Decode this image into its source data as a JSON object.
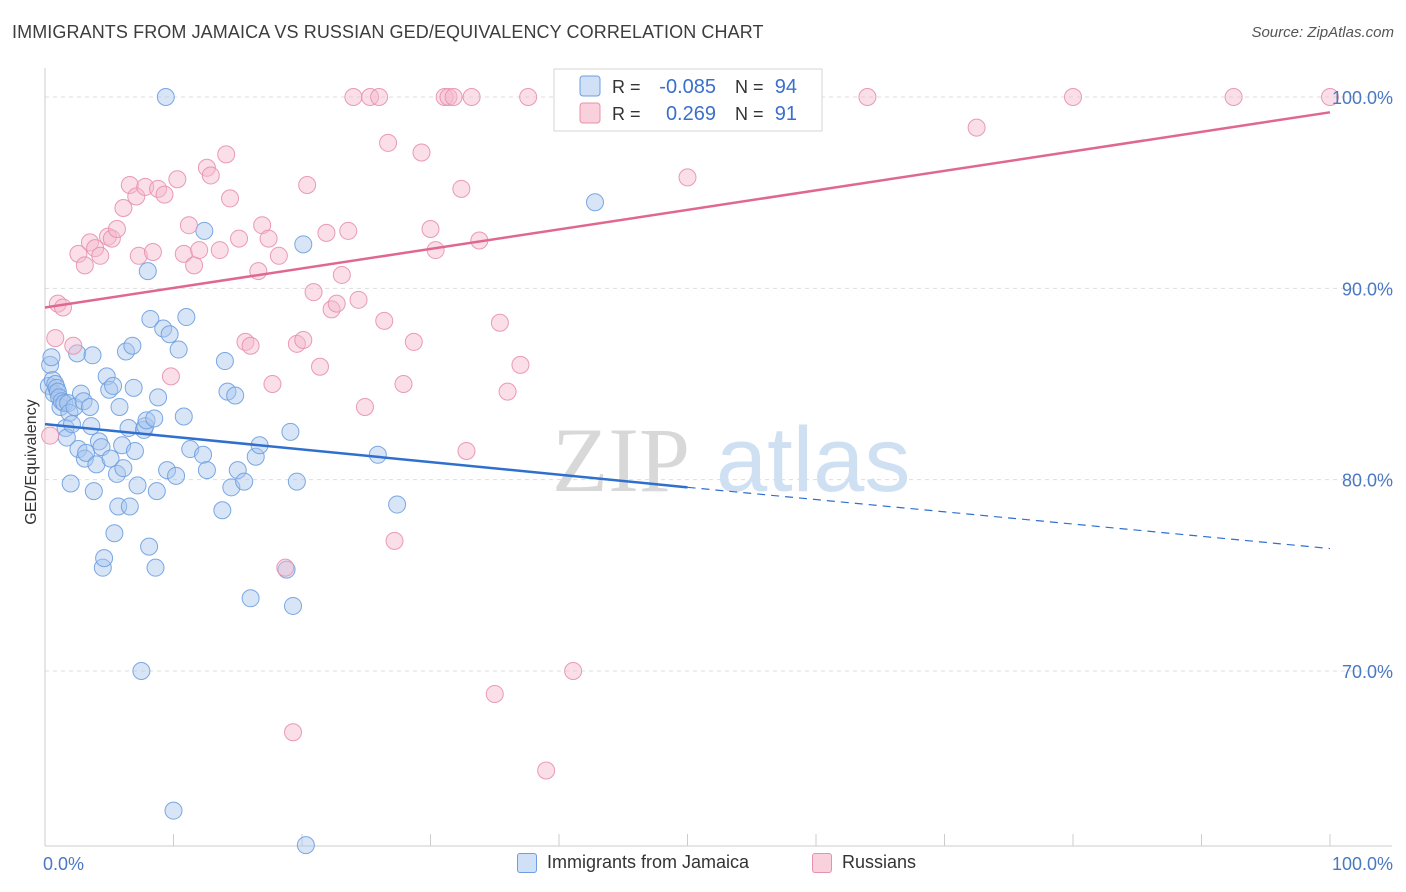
{
  "title": "IMMIGRANTS FROM JAMAICA VS RUSSIAN GED/EQUIVALENCY CORRELATION CHART",
  "source": "Source: ZipAtlas.com",
  "watermark": {
    "part1": "ZIP",
    "part2": "atlas"
  },
  "colors": {
    "blue_fill": "#a9c6ee",
    "blue_stroke": "#6d9ee0",
    "blue_line": "#2f6fce",
    "pink_fill": "#f5b8cb",
    "pink_stroke": "#e890ad",
    "pink_line": "#e0688f",
    "grid": "#dddddd",
    "tick_text": "#4a78c2"
  },
  "legend": {
    "row1": {
      "r_label": "R = ",
      "r_value": "-0.085",
      "n_label": "N = ",
      "n_value": "94"
    },
    "row2": {
      "r_label": "R = ",
      "r_value": "0.269",
      "n_label": "N = ",
      "n_value": "91"
    }
  },
  "bottom_legend": {
    "series1": "Immigrants from Jamaica",
    "series2": "Russians"
  },
  "chart_data": {
    "type": "scatter",
    "xlabel": "",
    "ylabel": "GED/Equivalency",
    "xlim": [
      0,
      100
    ],
    "ylim": [
      60.5,
      101.5
    ],
    "x_ticks": [
      "0.0%",
      "100.0%"
    ],
    "y_ticks": [
      {
        "value": 100,
        "label": "100.0%"
      },
      {
        "value": 90,
        "label": "90.0%"
      },
      {
        "value": 80,
        "label": "80.0%"
      },
      {
        "value": 70,
        "label": "70.0%"
      }
    ],
    "grid": true,
    "series": [
      {
        "name": "Immigrants from Jamaica",
        "r": -0.085,
        "n": 94,
        "trend": {
          "x0": 0,
          "y0": 82.9,
          "x1": 50,
          "y1": 79.6,
          "dash_x1": 100,
          "dash_y1": 76.4
        },
        "points": [
          [
            0.3,
            84.9
          ],
          [
            0.4,
            86.0
          ],
          [
            0.5,
            86.4
          ],
          [
            0.6,
            85.2
          ],
          [
            0.7,
            84.5
          ],
          [
            0.8,
            85.0
          ],
          [
            0.9,
            84.8
          ],
          [
            1.0,
            84.6
          ],
          [
            1.1,
            84.3
          ],
          [
            1.2,
            83.8
          ],
          [
            1.3,
            84.1
          ],
          [
            1.5,
            84.0
          ],
          [
            1.6,
            82.7
          ],
          [
            1.7,
            82.2
          ],
          [
            1.8,
            84.0
          ],
          [
            1.9,
            83.5
          ],
          [
            2.0,
            79.8
          ],
          [
            2.1,
            82.9
          ],
          [
            2.3,
            83.8
          ],
          [
            2.5,
            86.6
          ],
          [
            2.6,
            81.6
          ],
          [
            2.8,
            84.5
          ],
          [
            3.0,
            84.1
          ],
          [
            3.1,
            81.1
          ],
          [
            3.2,
            81.4
          ],
          [
            3.5,
            83.8
          ],
          [
            3.6,
            82.8
          ],
          [
            3.7,
            86.5
          ],
          [
            3.8,
            79.4
          ],
          [
            4.0,
            80.8
          ],
          [
            4.2,
            82.0
          ],
          [
            4.4,
            81.7
          ],
          [
            4.5,
            75.4
          ],
          [
            4.6,
            75.9
          ],
          [
            4.8,
            85.4
          ],
          [
            5.0,
            84.7
          ],
          [
            5.1,
            81.1
          ],
          [
            5.3,
            84.9
          ],
          [
            5.4,
            77.2
          ],
          [
            5.6,
            80.3
          ],
          [
            5.7,
            78.6
          ],
          [
            5.8,
            83.8
          ],
          [
            6.0,
            81.8
          ],
          [
            6.1,
            80.6
          ],
          [
            6.3,
            86.7
          ],
          [
            6.5,
            82.7
          ],
          [
            6.6,
            78.6
          ],
          [
            6.8,
            87.0
          ],
          [
            6.9,
            84.8
          ],
          [
            7.0,
            81.5
          ],
          [
            7.2,
            79.7
          ],
          [
            7.5,
            70.0
          ],
          [
            7.7,
            82.6
          ],
          [
            7.8,
            82.8
          ],
          [
            7.9,
            83.1
          ],
          [
            8.0,
            90.9
          ],
          [
            8.1,
            76.5
          ],
          [
            8.2,
            88.4
          ],
          [
            8.5,
            83.2
          ],
          [
            8.6,
            75.4
          ],
          [
            8.7,
            79.4
          ],
          [
            8.8,
            84.3
          ],
          [
            9.2,
            87.9
          ],
          [
            9.4,
            100.0
          ],
          [
            9.5,
            80.5
          ],
          [
            9.7,
            87.6
          ],
          [
            10.0,
            62.7
          ],
          [
            10.2,
            80.2
          ],
          [
            10.4,
            86.8
          ],
          [
            10.8,
            83.3
          ],
          [
            11.0,
            88.5
          ],
          [
            11.3,
            81.6
          ],
          [
            12.3,
            81.3
          ],
          [
            12.4,
            93.0
          ],
          [
            12.6,
            80.5
          ],
          [
            13.8,
            78.4
          ],
          [
            14.0,
            86.2
          ],
          [
            14.2,
            84.6
          ],
          [
            14.5,
            79.6
          ],
          [
            14.8,
            84.4
          ],
          [
            15.0,
            80.5
          ],
          [
            15.5,
            79.9
          ],
          [
            16.4,
            81.2
          ],
          [
            16.7,
            81.8
          ],
          [
            16.0,
            73.8
          ],
          [
            18.8,
            75.3
          ],
          [
            19.1,
            82.5
          ],
          [
            19.3,
            73.4
          ],
          [
            19.6,
            79.9
          ],
          [
            20.1,
            92.3
          ],
          [
            20.3,
            60.9
          ],
          [
            25.9,
            81.3
          ],
          [
            27.4,
            78.7
          ],
          [
            42.8,
            94.5
          ]
        ]
      },
      {
        "name": "Russians",
        "r": 0.269,
        "n": 91,
        "trend": {
          "x0": 0,
          "y0": 89.0,
          "x1": 100,
          "y1": 99.2
        },
        "points": [
          [
            0.4,
            82.3
          ],
          [
            0.8,
            87.4
          ],
          [
            1.0,
            89.2
          ],
          [
            1.4,
            89.0
          ],
          [
            2.2,
            87.0
          ],
          [
            2.6,
            91.8
          ],
          [
            3.1,
            91.2
          ],
          [
            3.5,
            92.4
          ],
          [
            3.9,
            92.1
          ],
          [
            4.3,
            91.7
          ],
          [
            4.9,
            92.7
          ],
          [
            5.2,
            92.6
          ],
          [
            5.6,
            93.1
          ],
          [
            6.1,
            94.2
          ],
          [
            6.6,
            95.4
          ],
          [
            7.1,
            94.8
          ],
          [
            7.3,
            91.7
          ],
          [
            7.8,
            95.3
          ],
          [
            8.4,
            91.9
          ],
          [
            8.8,
            95.2
          ],
          [
            9.3,
            94.9
          ],
          [
            9.8,
            85.4
          ],
          [
            10.3,
            95.7
          ],
          [
            10.8,
            91.8
          ],
          [
            11.2,
            93.3
          ],
          [
            11.6,
            91.2
          ],
          [
            12.0,
            92.0
          ],
          [
            12.6,
            96.3
          ],
          [
            12.9,
            95.9
          ],
          [
            13.6,
            92.0
          ],
          [
            14.1,
            97.0
          ],
          [
            14.4,
            94.7
          ],
          [
            15.1,
            92.6
          ],
          [
            15.6,
            87.2
          ],
          [
            16.0,
            87.0
          ],
          [
            16.6,
            90.9
          ],
          [
            16.9,
            93.3
          ],
          [
            17.4,
            92.6
          ],
          [
            17.7,
            85.0
          ],
          [
            18.2,
            91.7
          ],
          [
            18.7,
            75.4
          ],
          [
            19.3,
            66.8
          ],
          [
            19.6,
            87.1
          ],
          [
            20.1,
            87.3
          ],
          [
            20.4,
            95.4
          ],
          [
            20.9,
            89.8
          ],
          [
            21.4,
            85.9
          ],
          [
            21.9,
            92.9
          ],
          [
            22.3,
            88.9
          ],
          [
            22.7,
            89.2
          ],
          [
            23.1,
            90.7
          ],
          [
            23.6,
            93.0
          ],
          [
            24.0,
            100.0
          ],
          [
            24.4,
            89.4
          ],
          [
            24.9,
            83.8
          ],
          [
            25.3,
            100.0
          ],
          [
            26.0,
            100.0
          ],
          [
            26.4,
            88.3
          ],
          [
            26.7,
            97.6
          ],
          [
            27.2,
            76.8
          ],
          [
            27.9,
            85.0
          ],
          [
            28.7,
            87.2
          ],
          [
            29.3,
            97.1
          ],
          [
            30.0,
            93.1
          ],
          [
            30.4,
            92.0
          ],
          [
            31.1,
            100.0
          ],
          [
            31.4,
            100.0
          ],
          [
            31.8,
            100.0
          ],
          [
            32.4,
            95.2
          ],
          [
            32.8,
            81.5
          ],
          [
            33.2,
            100.0
          ],
          [
            33.8,
            92.5
          ],
          [
            35.0,
            68.8
          ],
          [
            35.4,
            88.2
          ],
          [
            36.0,
            84.6
          ],
          [
            37.0,
            86.0
          ],
          [
            37.6,
            100.0
          ],
          [
            39.0,
            64.8
          ],
          [
            40.3,
            100.0
          ],
          [
            41.1,
            70.0
          ],
          [
            45.0,
            100.0
          ],
          [
            47.0,
            100.0
          ],
          [
            50.0,
            95.8
          ],
          [
            52.0,
            100.0
          ],
          [
            57.0,
            100.0
          ],
          [
            59.5,
            100.0
          ],
          [
            64.0,
            100.0
          ],
          [
            72.5,
            98.4
          ],
          [
            80.0,
            100.0
          ],
          [
            92.5,
            100.0
          ],
          [
            100.0,
            100.0
          ]
        ]
      }
    ]
  }
}
